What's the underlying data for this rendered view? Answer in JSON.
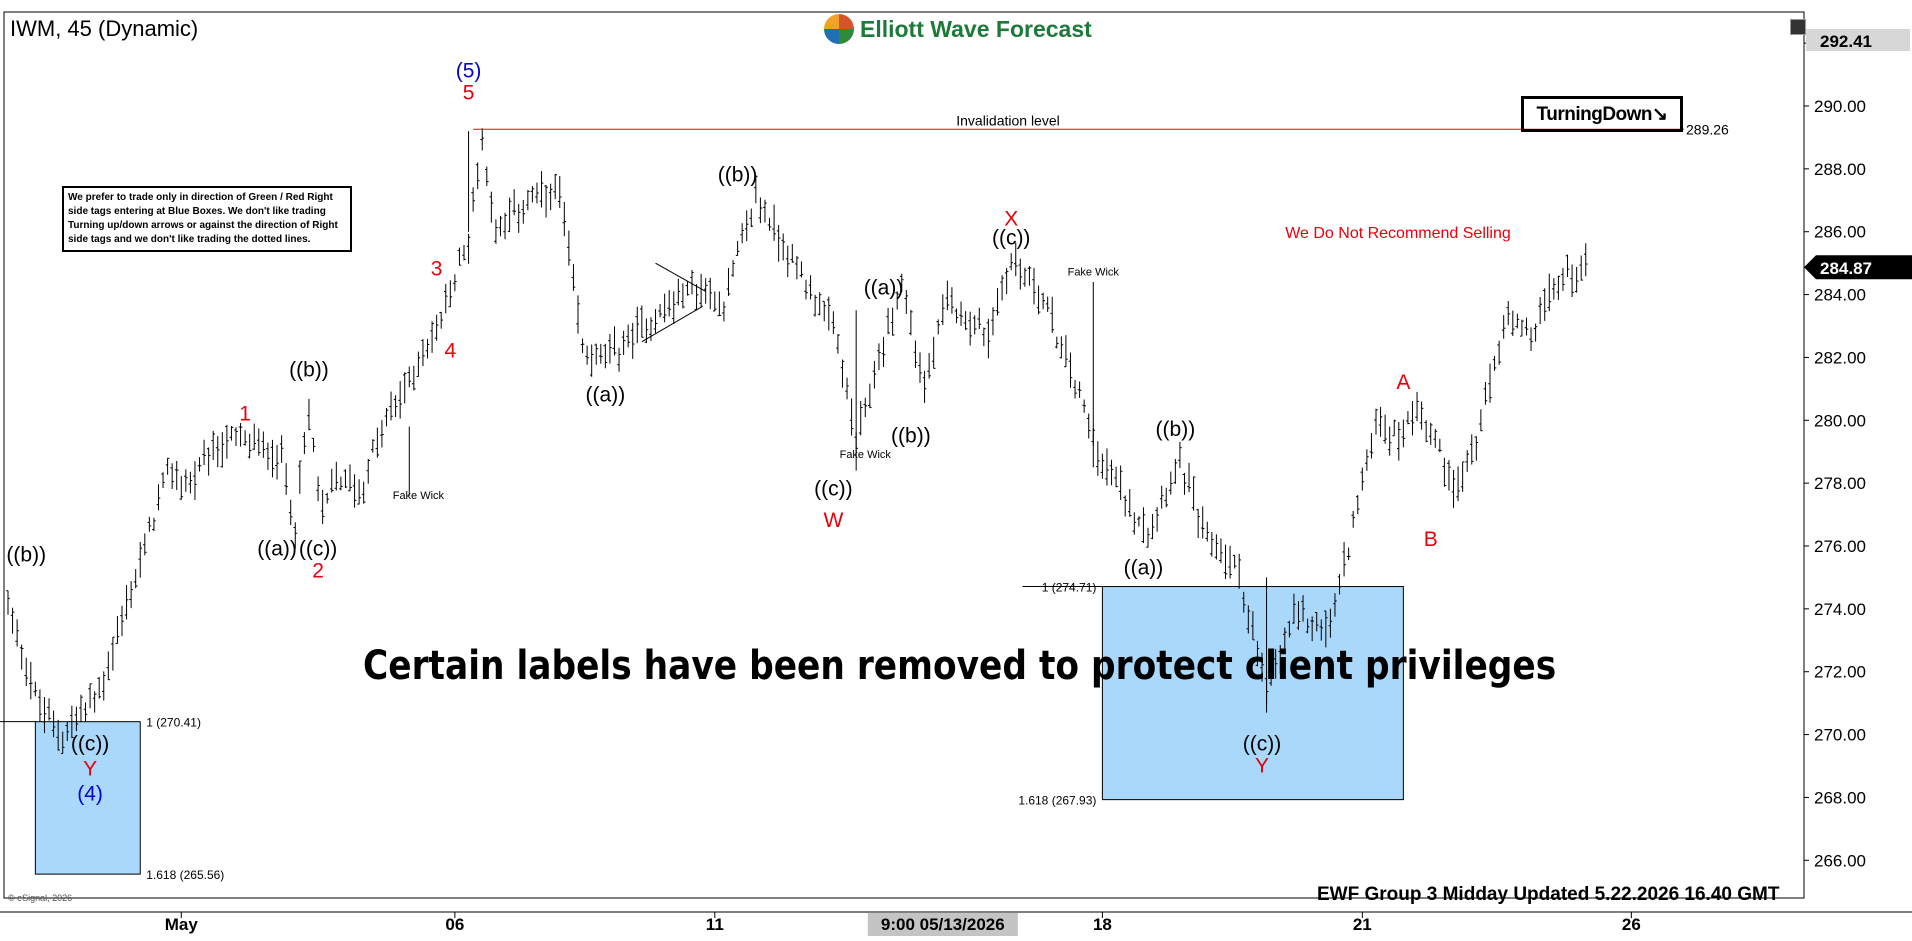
{
  "header": {
    "symbol": "IWM, 45 (Dynamic)",
    "brand": "Elliott Wave Forecast"
  },
  "note": "We prefer to trade only in direction of Green / Red Right side tags entering at Blue Boxes. We don't like trading Turning up/down arrows or against the direction of Right side tags and we don't like trading the dotted lines.",
  "watermark": "Certain labels have been removed to protect client privileges",
  "turning_badge": "TurningDown↘",
  "recommend": "We Do Not Recommend Selling",
  "footer": "EWF Group 3 Midday Updated 5.22.2026 16.40 GMT",
  "esignal": "© eSignal, 2026",
  "colors": {
    "label_red": "#e8000b",
    "label_blue": "#0000d8",
    "box_fill": "#aad8fb",
    "price_box": "#000000"
  },
  "chart_data": {
    "type": "ohlc",
    "symbol": "IWM",
    "interval": "45",
    "y_ticks": [
      "266.00",
      "268.00",
      "270.00",
      "272.00",
      "274.00",
      "276.00",
      "278.00",
      "280.00",
      "282.00",
      "284.00",
      "286.00",
      "288.00",
      "290.00",
      "292.00"
    ],
    "ylim": [
      264.8,
      292.8
    ],
    "x_ticks": [
      "May",
      "06",
      "11",
      "18",
      "21",
      "26"
    ],
    "x_ticks_bar": [
      38,
      98,
      155,
      240,
      297,
      356
    ],
    "cursor_label": "9:00 05/13/2026",
    "cursor_bar": 205,
    "last_price": "284.87",
    "high_price": "292.41",
    "invalidation": {
      "label": "Invalidation level",
      "value_label": "289.26",
      "value": 289.26
    },
    "anchors": [
      [
        0,
        274.2
      ],
      [
        7,
        270.8
      ],
      [
        12,
        270.0
      ],
      [
        20,
        271.3
      ],
      [
        28,
        275.0
      ],
      [
        35,
        278.3
      ],
      [
        40,
        278.0
      ],
      [
        48,
        279.4
      ],
      [
        55,
        279.2
      ],
      [
        60,
        278.8
      ],
      [
        63,
        276.8
      ],
      [
        66,
        280.2
      ],
      [
        69,
        277.0
      ],
      [
        72,
        278.2
      ],
      [
        78,
        277.8
      ],
      [
        80,
        279.0
      ],
      [
        84,
        280.2
      ],
      [
        90,
        281.8
      ],
      [
        95,
        283.2
      ],
      [
        101,
        285.8
      ],
      [
        104,
        289.0
      ],
      [
        107,
        286.0
      ],
      [
        114,
        287.0
      ],
      [
        121,
        287.2
      ],
      [
        126,
        282.3
      ],
      [
        131,
        281.9
      ],
      [
        140,
        283.1
      ],
      [
        150,
        284.2
      ],
      [
        157,
        283.8
      ],
      [
        164,
        287.1
      ],
      [
        172,
        285.1
      ],
      [
        176,
        284.2
      ],
      [
        182,
        282.5
      ],
      [
        186,
        279.2
      ],
      [
        190,
        281.4
      ],
      [
        196,
        284.4
      ],
      [
        201,
        281.0
      ],
      [
        206,
        283.8
      ],
      [
        215,
        282.7
      ],
      [
        220,
        285.1
      ],
      [
        226,
        284.2
      ],
      [
        234,
        281.2
      ],
      [
        240,
        278.7
      ],
      [
        246,
        277.3
      ],
      [
        250,
        276.6
      ],
      [
        257,
        278.8
      ],
      [
        262,
        276.5
      ],
      [
        270,
        275.2
      ],
      [
        276,
        271.3
      ],
      [
        282,
        273.8
      ],
      [
        290,
        273.4
      ],
      [
        300,
        280.0
      ],
      [
        305,
        279.4
      ],
      [
        309,
        280.5
      ],
      [
        314,
        279.0
      ],
      [
        318,
        277.8
      ],
      [
        323,
        279.8
      ],
      [
        328,
        283.1
      ],
      [
        334,
        282.6
      ],
      [
        340,
        284.5
      ],
      [
        346,
        284.9
      ]
    ],
    "boxes": [
      {
        "top": 270.41,
        "bottom": 265.56,
        "top_label": "1 (270.41)",
        "bottom_label": "1.618 (265.56)",
        "bar_start": 6,
        "bar_end": 29
      },
      {
        "top": 274.71,
        "bottom": 267.93,
        "top_label": "1 (274.71)",
        "bottom_label": "1.618 (267.93)",
        "bar_start": 240,
        "bar_end": 306
      }
    ],
    "wave_labels": [
      {
        "text": "((b))",
        "bar": 4,
        "price": 275.5,
        "color": "black"
      },
      {
        "text": "((c))",
        "bar": 18,
        "price": 269.5,
        "color": "black"
      },
      {
        "text": "Y",
        "bar": 18,
        "price": 268.7,
        "color": "red"
      },
      {
        "text": "(4)",
        "bar": 18,
        "price": 267.9,
        "color": "blue"
      },
      {
        "text": "1",
        "bar": 52,
        "price": 280.0,
        "color": "red"
      },
      {
        "text": "((b))",
        "bar": 66,
        "price": 281.4,
        "color": "black"
      },
      {
        "text": "((a))",
        "bar": 59,
        "price": 275.7,
        "color": "black"
      },
      {
        "text": "((c))",
        "bar": 68,
        "price": 275.7,
        "color": "black"
      },
      {
        "text": "2",
        "bar": 68,
        "price": 275.0,
        "color": "red"
      },
      {
        "text": "Fake Wick",
        "bar": 90,
        "price": 277.5,
        "color": "small"
      },
      {
        "text": "3",
        "bar": 94,
        "price": 284.6,
        "color": "red"
      },
      {
        "text": "4",
        "bar": 97,
        "price": 282.0,
        "color": "red"
      },
      {
        "text": "(5)",
        "bar": 101,
        "price": 290.9,
        "color": "blue"
      },
      {
        "text": "5",
        "bar": 101,
        "price": 290.2,
        "color": "red"
      },
      {
        "text": "((a))",
        "bar": 131,
        "price": 280.6,
        "color": "black"
      },
      {
        "text": "((b))",
        "bar": 160,
        "price": 287.6,
        "color": "black"
      },
      {
        "text": "((c))",
        "bar": 181,
        "price": 277.6,
        "color": "black"
      },
      {
        "text": "Fake Wick",
        "bar": 188,
        "price": 278.8,
        "color": "small"
      },
      {
        "text": "W",
        "bar": 181,
        "price": 276.6,
        "color": "red"
      },
      {
        "text": "((a))",
        "bar": 192,
        "price": 284.0,
        "color": "black"
      },
      {
        "text": "((b))",
        "bar": 198,
        "price": 279.3,
        "color": "black"
      },
      {
        "text": "X",
        "bar": 220,
        "price": 286.2,
        "color": "red"
      },
      {
        "text": "((c))",
        "bar": 220,
        "price": 285.6,
        "color": "black"
      },
      {
        "text": "Fake Wick",
        "bar": 238,
        "price": 284.6,
        "color": "small"
      },
      {
        "text": "((b))",
        "bar": 256,
        "price": 279.5,
        "color": "black"
      },
      {
        "text": "((a))",
        "bar": 249,
        "price": 275.1,
        "color": "black"
      },
      {
        "text": "((c))",
        "bar": 275,
        "price": 269.5,
        "color": "black"
      },
      {
        "text": "Y",
        "bar": 275,
        "price": 268.8,
        "color": "red"
      },
      {
        "text": "A",
        "bar": 306,
        "price": 281.0,
        "color": "red"
      },
      {
        "text": "B",
        "bar": 312,
        "price": 276.0,
        "color": "red"
      }
    ]
  }
}
